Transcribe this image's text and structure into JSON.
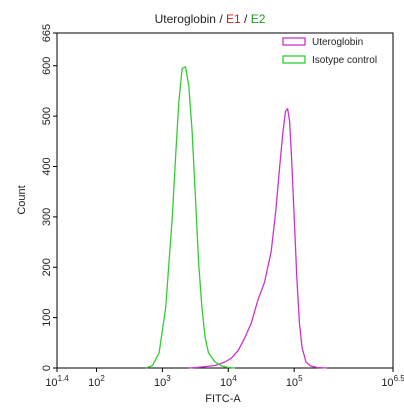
{
  "chart_data": {
    "type": "line",
    "title_parts": [
      {
        "text": "Uteroglobin",
        "color": "#222222"
      },
      {
        "text": " / ",
        "color": "#222222"
      },
      {
        "text": "E1",
        "color": "#d11a1a"
      },
      {
        "text": " / ",
        "color": "#222222"
      },
      {
        "text": "E2",
        "color": "#1a9a1a"
      }
    ],
    "xlabel": "FITC-A",
    "ylabel": "Count",
    "x_scale": "log10",
    "xlim": [
      1.4,
      6.5
    ],
    "ylim": [
      0,
      665
    ],
    "x_ticks": [
      {
        "base": "10",
        "exp": "1.4",
        "value": 1.4
      },
      {
        "base": "10",
        "exp": "2",
        "value": 2
      },
      {
        "base": "10",
        "exp": "3",
        "value": 3
      },
      {
        "base": "10",
        "exp": "4",
        "value": 4
      },
      {
        "base": "10",
        "exp": "5",
        "value": 5
      },
      {
        "base": "10",
        "exp": "6.5",
        "value": 6.5
      }
    ],
    "y_ticks": [
      0,
      100,
      200,
      300,
      400,
      500,
      600,
      665
    ],
    "legend_position": "top-right",
    "series": [
      {
        "name": "Uteroglobin",
        "color": "#cc33cc",
        "x": [
          3.4,
          3.6,
          3.8,
          3.95,
          4.05,
          4.15,
          4.25,
          4.35,
          4.45,
          4.55,
          4.65,
          4.72,
          4.78,
          4.83,
          4.87,
          4.9,
          4.93,
          4.96,
          5.0,
          5.04,
          5.08,
          5.12,
          5.18,
          5.25,
          5.35,
          5.5
        ],
        "y": [
          0,
          2,
          5,
          12,
          20,
          35,
          60,
          90,
          135,
          170,
          230,
          310,
          400,
          470,
          510,
          515,
          490,
          420,
          300,
          180,
          90,
          40,
          12,
          4,
          1,
          0
        ]
      },
      {
        "name": "Isotype control",
        "color": "#33cc33",
        "x": [
          2.75,
          2.85,
          2.95,
          3.05,
          3.15,
          3.2,
          3.25,
          3.3,
          3.35,
          3.4,
          3.45,
          3.5,
          3.55,
          3.6,
          3.65,
          3.7,
          3.8,
          3.9,
          4.0,
          4.1
        ],
        "y": [
          0,
          5,
          30,
          120,
          300,
          420,
          530,
          595,
          598,
          560,
          470,
          340,
          210,
          120,
          60,
          30,
          12,
          4,
          1,
          0
        ]
      }
    ]
  }
}
